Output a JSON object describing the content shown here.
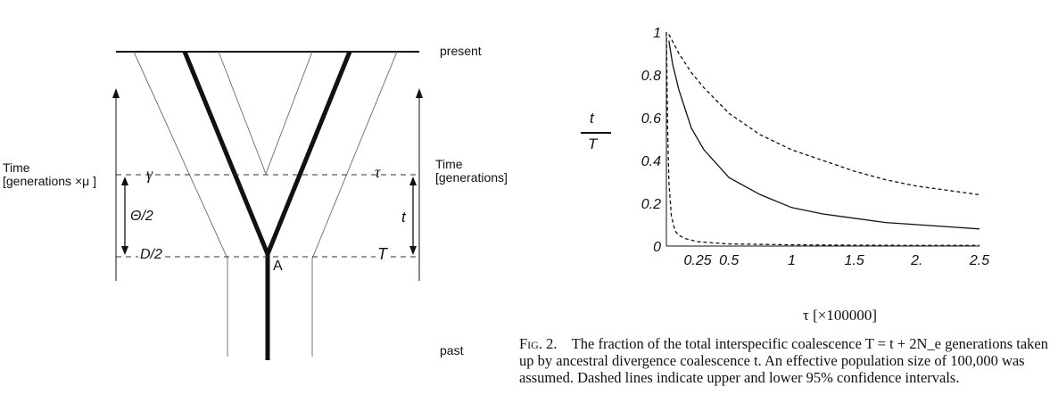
{
  "diagram": {
    "label_present": "present",
    "label_past": "past",
    "time_left_line1": "Time",
    "time_left_line2": "[generations ×μ ]",
    "time_right_line1": "Time",
    "time_right_line2": "[generations]",
    "sym_gamma": "γ",
    "sym_tau": "τ",
    "sym_theta_half": "Θ/2",
    "sym_t": "t",
    "sym_D_half": "D/2",
    "sym_T": "T",
    "node_A": "A"
  },
  "chart_data": {
    "type": "line",
    "ylabel_num": "t",
    "ylabel_den": "T",
    "xlabel": "τ [×100000]",
    "x_ticks": [
      "0.25",
      "0.5",
      "1",
      "1.5",
      "2.",
      "2.5"
    ],
    "x_tick_values": [
      0.25,
      0.5,
      1,
      1.5,
      2,
      2.5
    ],
    "y_ticks": [
      "0",
      "0.2",
      "0.4",
      "0.6",
      "0.8",
      "1"
    ],
    "y_tick_values": [
      0,
      0.2,
      0.4,
      0.6,
      0.8,
      1
    ],
    "xlim": [
      0,
      2.5
    ],
    "ylim": [
      0,
      1
    ],
    "series": [
      {
        "style": "dashed",
        "x": [
          0.02,
          0.1,
          0.2,
          0.3,
          0.5,
          0.75,
          1.0,
          1.25,
          1.5,
          1.75,
          2.0,
          2.25,
          2.5
        ],
        "y": [
          0.99,
          0.9,
          0.81,
          0.74,
          0.62,
          0.52,
          0.45,
          0.4,
          0.35,
          0.31,
          0.28,
          0.26,
          0.24
        ]
      },
      {
        "style": "solid",
        "x": [
          0.02,
          0.05,
          0.1,
          0.2,
          0.3,
          0.5,
          0.75,
          1.0,
          1.25,
          1.5,
          1.75,
          2.0,
          2.25,
          2.5
        ],
        "y": [
          0.96,
          0.85,
          0.73,
          0.55,
          0.45,
          0.32,
          0.24,
          0.18,
          0.15,
          0.13,
          0.11,
          0.1,
          0.09,
          0.08
        ]
      },
      {
        "style": "dashed",
        "x": [
          0.0,
          0.01,
          0.02,
          0.04,
          0.07,
          0.1,
          0.15,
          0.25,
          0.5,
          1.0,
          1.5,
          2.0,
          2.5
        ],
        "y": [
          1.0,
          0.55,
          0.3,
          0.14,
          0.07,
          0.05,
          0.035,
          0.02,
          0.01,
          0.006,
          0.004,
          0.003,
          0.003
        ]
      }
    ]
  },
  "caption": {
    "fig_label": "Fig. 2.",
    "text": "The fraction of the total interspecific coalescence T = t + 2N_e generations taken up by ancestral divergence coalescence t. An effective population size of 100,000 was assumed. Dashed lines indicate upper and lower 95% confidence intervals."
  }
}
